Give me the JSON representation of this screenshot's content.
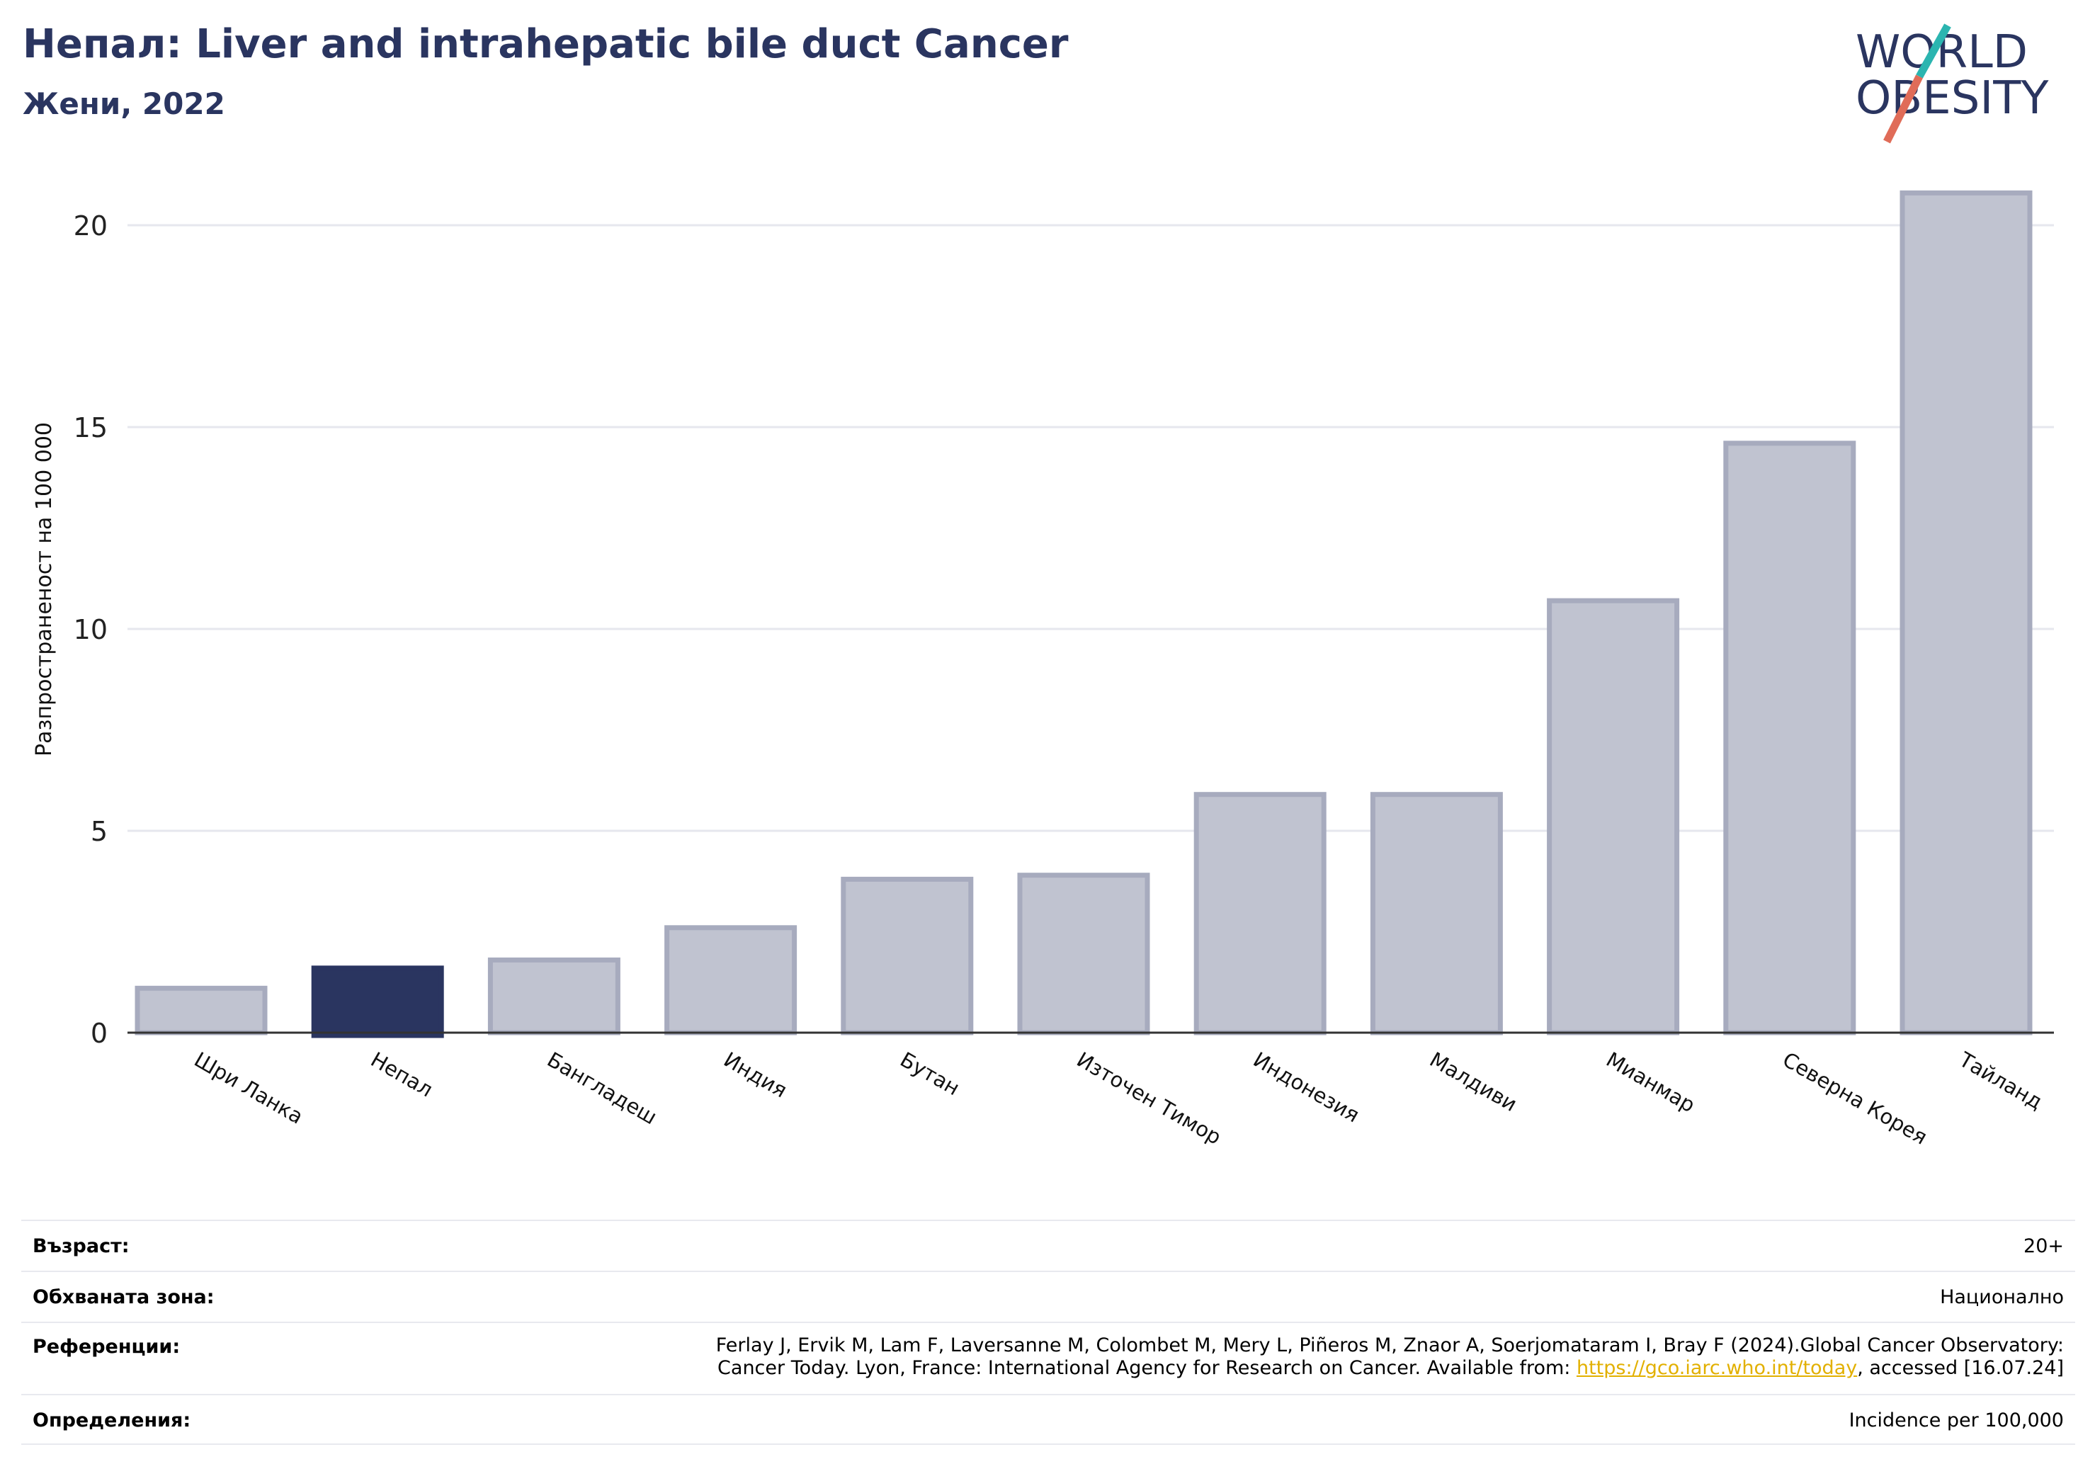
{
  "header": {
    "title": "Непал: Liver and intrahepatic bile duct Cancer",
    "subtitle": "Жени, 2022"
  },
  "logo": {
    "line1": "WORLD",
    "line2": "OBESITY",
    "icon": "slash-logo-icon",
    "colors": {
      "text": "#2a3560",
      "teal": "#2bb5b0",
      "coral": "#e06c58"
    }
  },
  "chart_data": {
    "type": "bar",
    "categories": [
      "Шри Ланка",
      "Непал",
      "Бангладеш",
      "Индия",
      "Бутан",
      "Източен Тимор",
      "Индонезия",
      "Малдиви",
      "Мианмар",
      "Северна Корея",
      "Тайланд"
    ],
    "values": [
      1.1,
      1.6,
      1.8,
      2.6,
      3.8,
      3.9,
      5.9,
      5.9,
      10.7,
      14.6,
      20.8
    ],
    "highlight": "Непал",
    "ylabel": "Разпространеност  на 100 000",
    "xlabel": "",
    "ylim": [
      0,
      21.5
    ],
    "yticks": [
      0,
      5,
      10,
      15,
      20
    ],
    "grid": true,
    "colors": {
      "bar": "#c0c3d0",
      "bar_edge": "#a7abbe",
      "highlight": "#2a3560",
      "grid": "#e6e7ee",
      "axis": "#333333"
    }
  },
  "info": {
    "age_label": "Възраст:",
    "age_value": "20+",
    "area_label": "Обхваната зона:",
    "area_value": "Национално",
    "ref_label": "Референции:",
    "ref_line1": "Ferlay J, Ervik M, Lam F, Laversanne M, Colombet M, Mery L, Piñeros M, Znaor A, Soerjomataram I, Bray F (2024).Global Cancer Observatory:",
    "ref_line2_pre": "Cancer Today. Lyon, France: International Agency for Research on Cancer. Available from: ",
    "ref_link": "https://gco.iarc.who.int/today",
    "ref_line2_post": ", accessed [16.07.24]",
    "def_label": "Определения:",
    "def_value": "Incidence per 100,000"
  }
}
